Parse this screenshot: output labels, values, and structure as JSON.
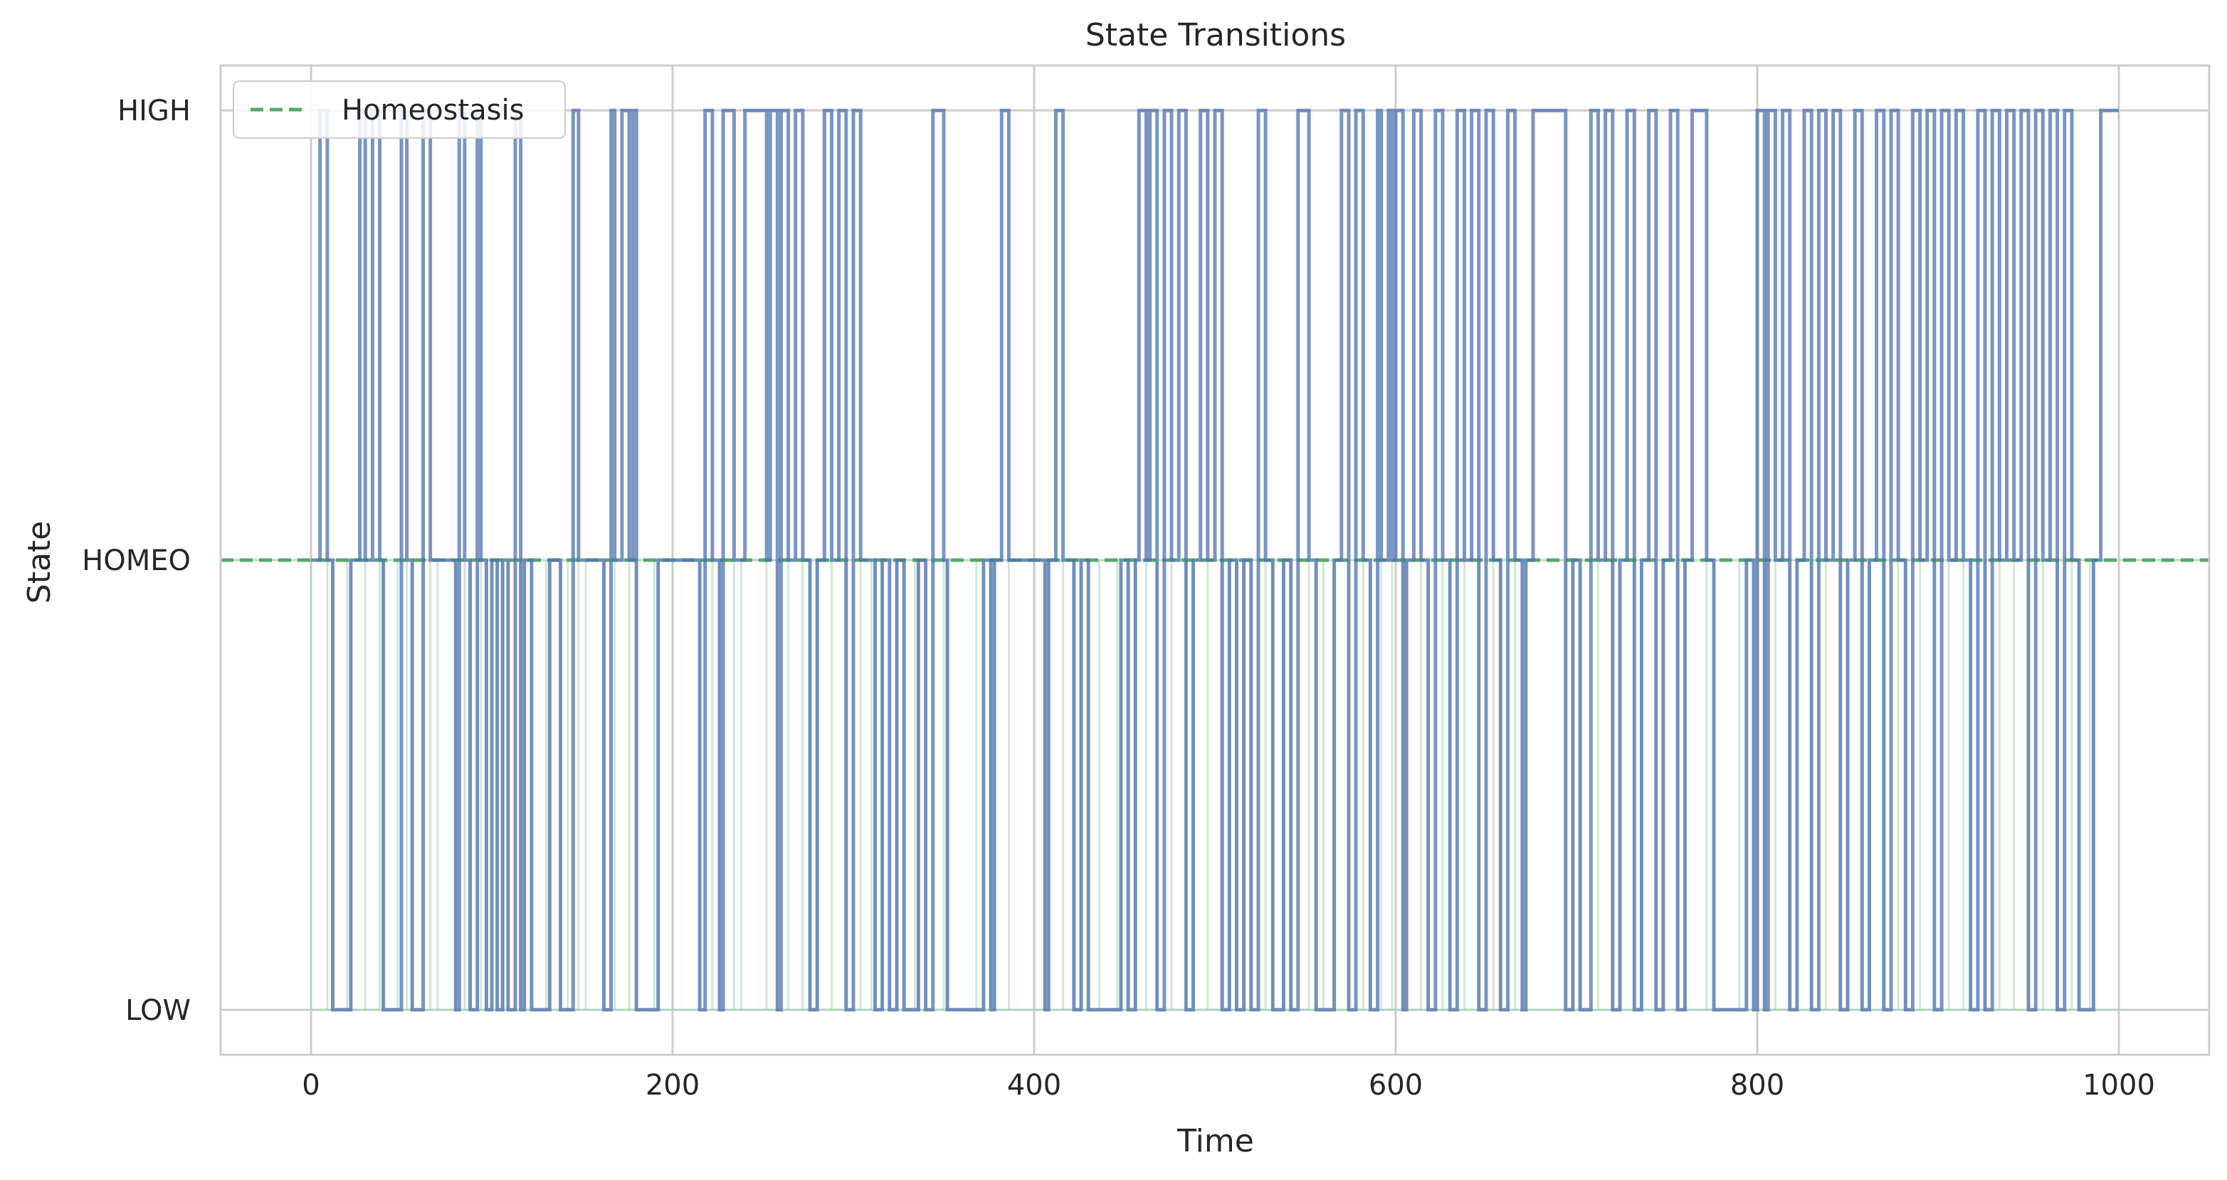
{
  "chart_data": {
    "type": "line",
    "title": "State Transitions",
    "xlabel": "Time",
    "ylabel": "State",
    "xlim": [
      -50,
      1050
    ],
    "ylim": [
      -0.1,
      2.1
    ],
    "x_ticks": [
      0,
      200,
      400,
      600,
      800,
      1000
    ],
    "y_ticks": [
      {
        "value": 0,
        "label": "LOW"
      },
      {
        "value": 1,
        "label": "HOMEO"
      },
      {
        "value": 2,
        "label": "HIGH"
      }
    ],
    "grid": true,
    "legend": {
      "placement": "top-left",
      "entries": [
        "Homeostasis"
      ]
    },
    "reference_line": {
      "name": "Homeostasis",
      "y": 1,
      "style": "dashed",
      "color": "#55a868"
    },
    "series": [
      {
        "style": "step",
        "color": "#4c72b0",
        "points": [
          [
            0,
            1
          ],
          [
            5,
            2
          ],
          [
            9,
            1
          ],
          [
            12,
            0
          ],
          [
            20,
            0
          ],
          [
            22,
            1
          ],
          [
            27,
            2
          ],
          [
            30,
            1
          ],
          [
            34,
            2
          ],
          [
            38,
            1
          ],
          [
            40,
            0
          ],
          [
            48,
            0
          ],
          [
            50,
            2
          ],
          [
            53,
            1
          ],
          [
            56,
            0
          ],
          [
            62,
            2
          ],
          [
            66,
            1
          ],
          [
            70,
            1
          ],
          [
            80,
            0
          ],
          [
            82,
            2
          ],
          [
            85,
            1
          ],
          [
            88,
            0
          ],
          [
            92,
            2
          ],
          [
            94,
            1
          ],
          [
            97,
            0
          ],
          [
            100,
            1
          ],
          [
            103,
            0
          ],
          [
            106,
            1
          ],
          [
            109,
            0
          ],
          [
            113,
            2
          ],
          [
            116,
            0
          ],
          [
            118,
            1
          ],
          [
            122,
            0
          ],
          [
            130,
            0
          ],
          [
            132,
            1
          ],
          [
            138,
            0
          ],
          [
            142,
            0
          ],
          [
            145,
            2
          ],
          [
            148,
            1
          ],
          [
            152,
            1
          ],
          [
            162,
            0
          ],
          [
            166,
            2
          ],
          [
            168,
            1
          ],
          [
            172,
            2
          ],
          [
            176,
            1
          ],
          [
            178,
            2
          ],
          [
            180,
            0
          ],
          [
            190,
            0
          ],
          [
            192,
            1
          ],
          [
            200,
            1
          ],
          [
            215,
            0
          ],
          [
            218,
            2
          ],
          [
            222,
            1
          ],
          [
            226,
            0
          ],
          [
            228,
            2
          ],
          [
            234,
            1
          ],
          [
            238,
            1
          ],
          [
            240,
            2
          ],
          [
            252,
            1
          ],
          [
            254,
            2
          ],
          [
            258,
            0
          ],
          [
            260,
            2
          ],
          [
            264,
            1
          ],
          [
            268,
            2
          ],
          [
            272,
            1
          ],
          [
            276,
            0
          ],
          [
            280,
            1
          ],
          [
            284,
            2
          ],
          [
            288,
            1
          ],
          [
            292,
            2
          ],
          [
            296,
            0
          ],
          [
            300,
            2
          ],
          [
            304,
            1
          ],
          [
            310,
            1
          ],
          [
            312,
            0
          ],
          [
            316,
            1
          ],
          [
            320,
            0
          ],
          [
            324,
            1
          ],
          [
            328,
            0
          ],
          [
            334,
            0
          ],
          [
            336,
            1
          ],
          [
            340,
            0
          ],
          [
            344,
            2
          ],
          [
            350,
            1
          ],
          [
            352,
            0
          ],
          [
            368,
            0
          ],
          [
            372,
            1
          ],
          [
            376,
            0
          ],
          [
            378,
            1
          ],
          [
            382,
            2
          ],
          [
            386,
            1
          ],
          [
            400,
            1
          ],
          [
            406,
            0
          ],
          [
            408,
            1
          ],
          [
            412,
            2
          ],
          [
            416,
            1
          ],
          [
            422,
            0
          ],
          [
            426,
            1
          ],
          [
            430,
            0
          ],
          [
            436,
            0
          ],
          [
            446,
            0
          ],
          [
            448,
            1
          ],
          [
            452,
            0
          ],
          [
            456,
            1
          ],
          [
            458,
            2
          ],
          [
            462,
            1
          ],
          [
            464,
            2
          ],
          [
            468,
            0
          ],
          [
            472,
            2
          ],
          [
            476,
            1
          ],
          [
            480,
            2
          ],
          [
            484,
            0
          ],
          [
            488,
            1
          ],
          [
            492,
            2
          ],
          [
            496,
            1
          ],
          [
            500,
            2
          ],
          [
            504,
            0
          ],
          [
            508,
            1
          ],
          [
            512,
            0
          ],
          [
            516,
            1
          ],
          [
            520,
            0
          ],
          [
            524,
            2
          ],
          [
            528,
            1
          ],
          [
            532,
            0
          ],
          [
            538,
            1
          ],
          [
            542,
            0
          ],
          [
            546,
            2
          ],
          [
            552,
            1
          ],
          [
            556,
            0
          ],
          [
            560,
            0
          ],
          [
            566,
            1
          ],
          [
            570,
            2
          ],
          [
            574,
            0
          ],
          [
            578,
            2
          ],
          [
            582,
            1
          ],
          [
            586,
            0
          ],
          [
            590,
            2
          ],
          [
            592,
            1
          ],
          [
            596,
            2
          ],
          [
            598,
            1
          ],
          [
            600,
            2
          ],
          [
            604,
            0
          ],
          [
            606,
            1
          ],
          [
            610,
            2
          ],
          [
            614,
            1
          ],
          [
            618,
            0
          ],
          [
            622,
            2
          ],
          [
            626,
            1
          ],
          [
            630,
            0
          ],
          [
            634,
            2
          ],
          [
            638,
            1
          ],
          [
            642,
            2
          ],
          [
            646,
            0
          ],
          [
            650,
            2
          ],
          [
            654,
            1
          ],
          [
            658,
            0
          ],
          [
            662,
            2
          ],
          [
            666,
            1
          ],
          [
            670,
            0
          ],
          [
            672,
            1
          ],
          [
            676,
            2
          ],
          [
            690,
            2
          ],
          [
            694,
            0
          ],
          [
            698,
            1
          ],
          [
            702,
            0
          ],
          [
            708,
            2
          ],
          [
            712,
            1
          ],
          [
            716,
            2
          ],
          [
            720,
            0
          ],
          [
            724,
            1
          ],
          [
            728,
            2
          ],
          [
            732,
            0
          ],
          [
            736,
            1
          ],
          [
            740,
            2
          ],
          [
            744,
            0
          ],
          [
            748,
            1
          ],
          [
            752,
            2
          ],
          [
            756,
            0
          ],
          [
            760,
            1
          ],
          [
            764,
            2
          ],
          [
            772,
            1
          ],
          [
            776,
            0
          ],
          [
            790,
            0
          ],
          [
            794,
            1
          ],
          [
            798,
            0
          ],
          [
            800,
            2
          ],
          [
            804,
            0
          ],
          [
            806,
            2
          ],
          [
            810,
            1
          ],
          [
            814,
            2
          ],
          [
            818,
            0
          ],
          [
            822,
            1
          ],
          [
            826,
            2
          ],
          [
            830,
            0
          ],
          [
            834,
            2
          ],
          [
            838,
            1
          ],
          [
            842,
            2
          ],
          [
            846,
            0
          ],
          [
            850,
            1
          ],
          [
            854,
            2
          ],
          [
            858,
            0
          ],
          [
            862,
            1
          ],
          [
            866,
            2
          ],
          [
            870,
            0
          ],
          [
            874,
            2
          ],
          [
            878,
            1
          ],
          [
            882,
            0
          ],
          [
            886,
            2
          ],
          [
            890,
            1
          ],
          [
            894,
            2
          ],
          [
            898,
            0
          ],
          [
            902,
            2
          ],
          [
            906,
            1
          ],
          [
            910,
            2
          ],
          [
            914,
            1
          ],
          [
            918,
            0
          ],
          [
            922,
            2
          ],
          [
            926,
            0
          ],
          [
            930,
            2
          ],
          [
            934,
            1
          ],
          [
            938,
            2
          ],
          [
            942,
            1
          ],
          [
            946,
            2
          ],
          [
            950,
            0
          ],
          [
            954,
            2
          ],
          [
            958,
            1
          ],
          [
            962,
            2
          ],
          [
            966,
            0
          ],
          [
            970,
            2
          ],
          [
            974,
            1
          ],
          [
            978,
            0
          ],
          [
            984,
            0
          ],
          [
            986,
            1
          ],
          [
            990,
            2
          ],
          [
            1000,
            2
          ]
        ]
      }
    ]
  }
}
